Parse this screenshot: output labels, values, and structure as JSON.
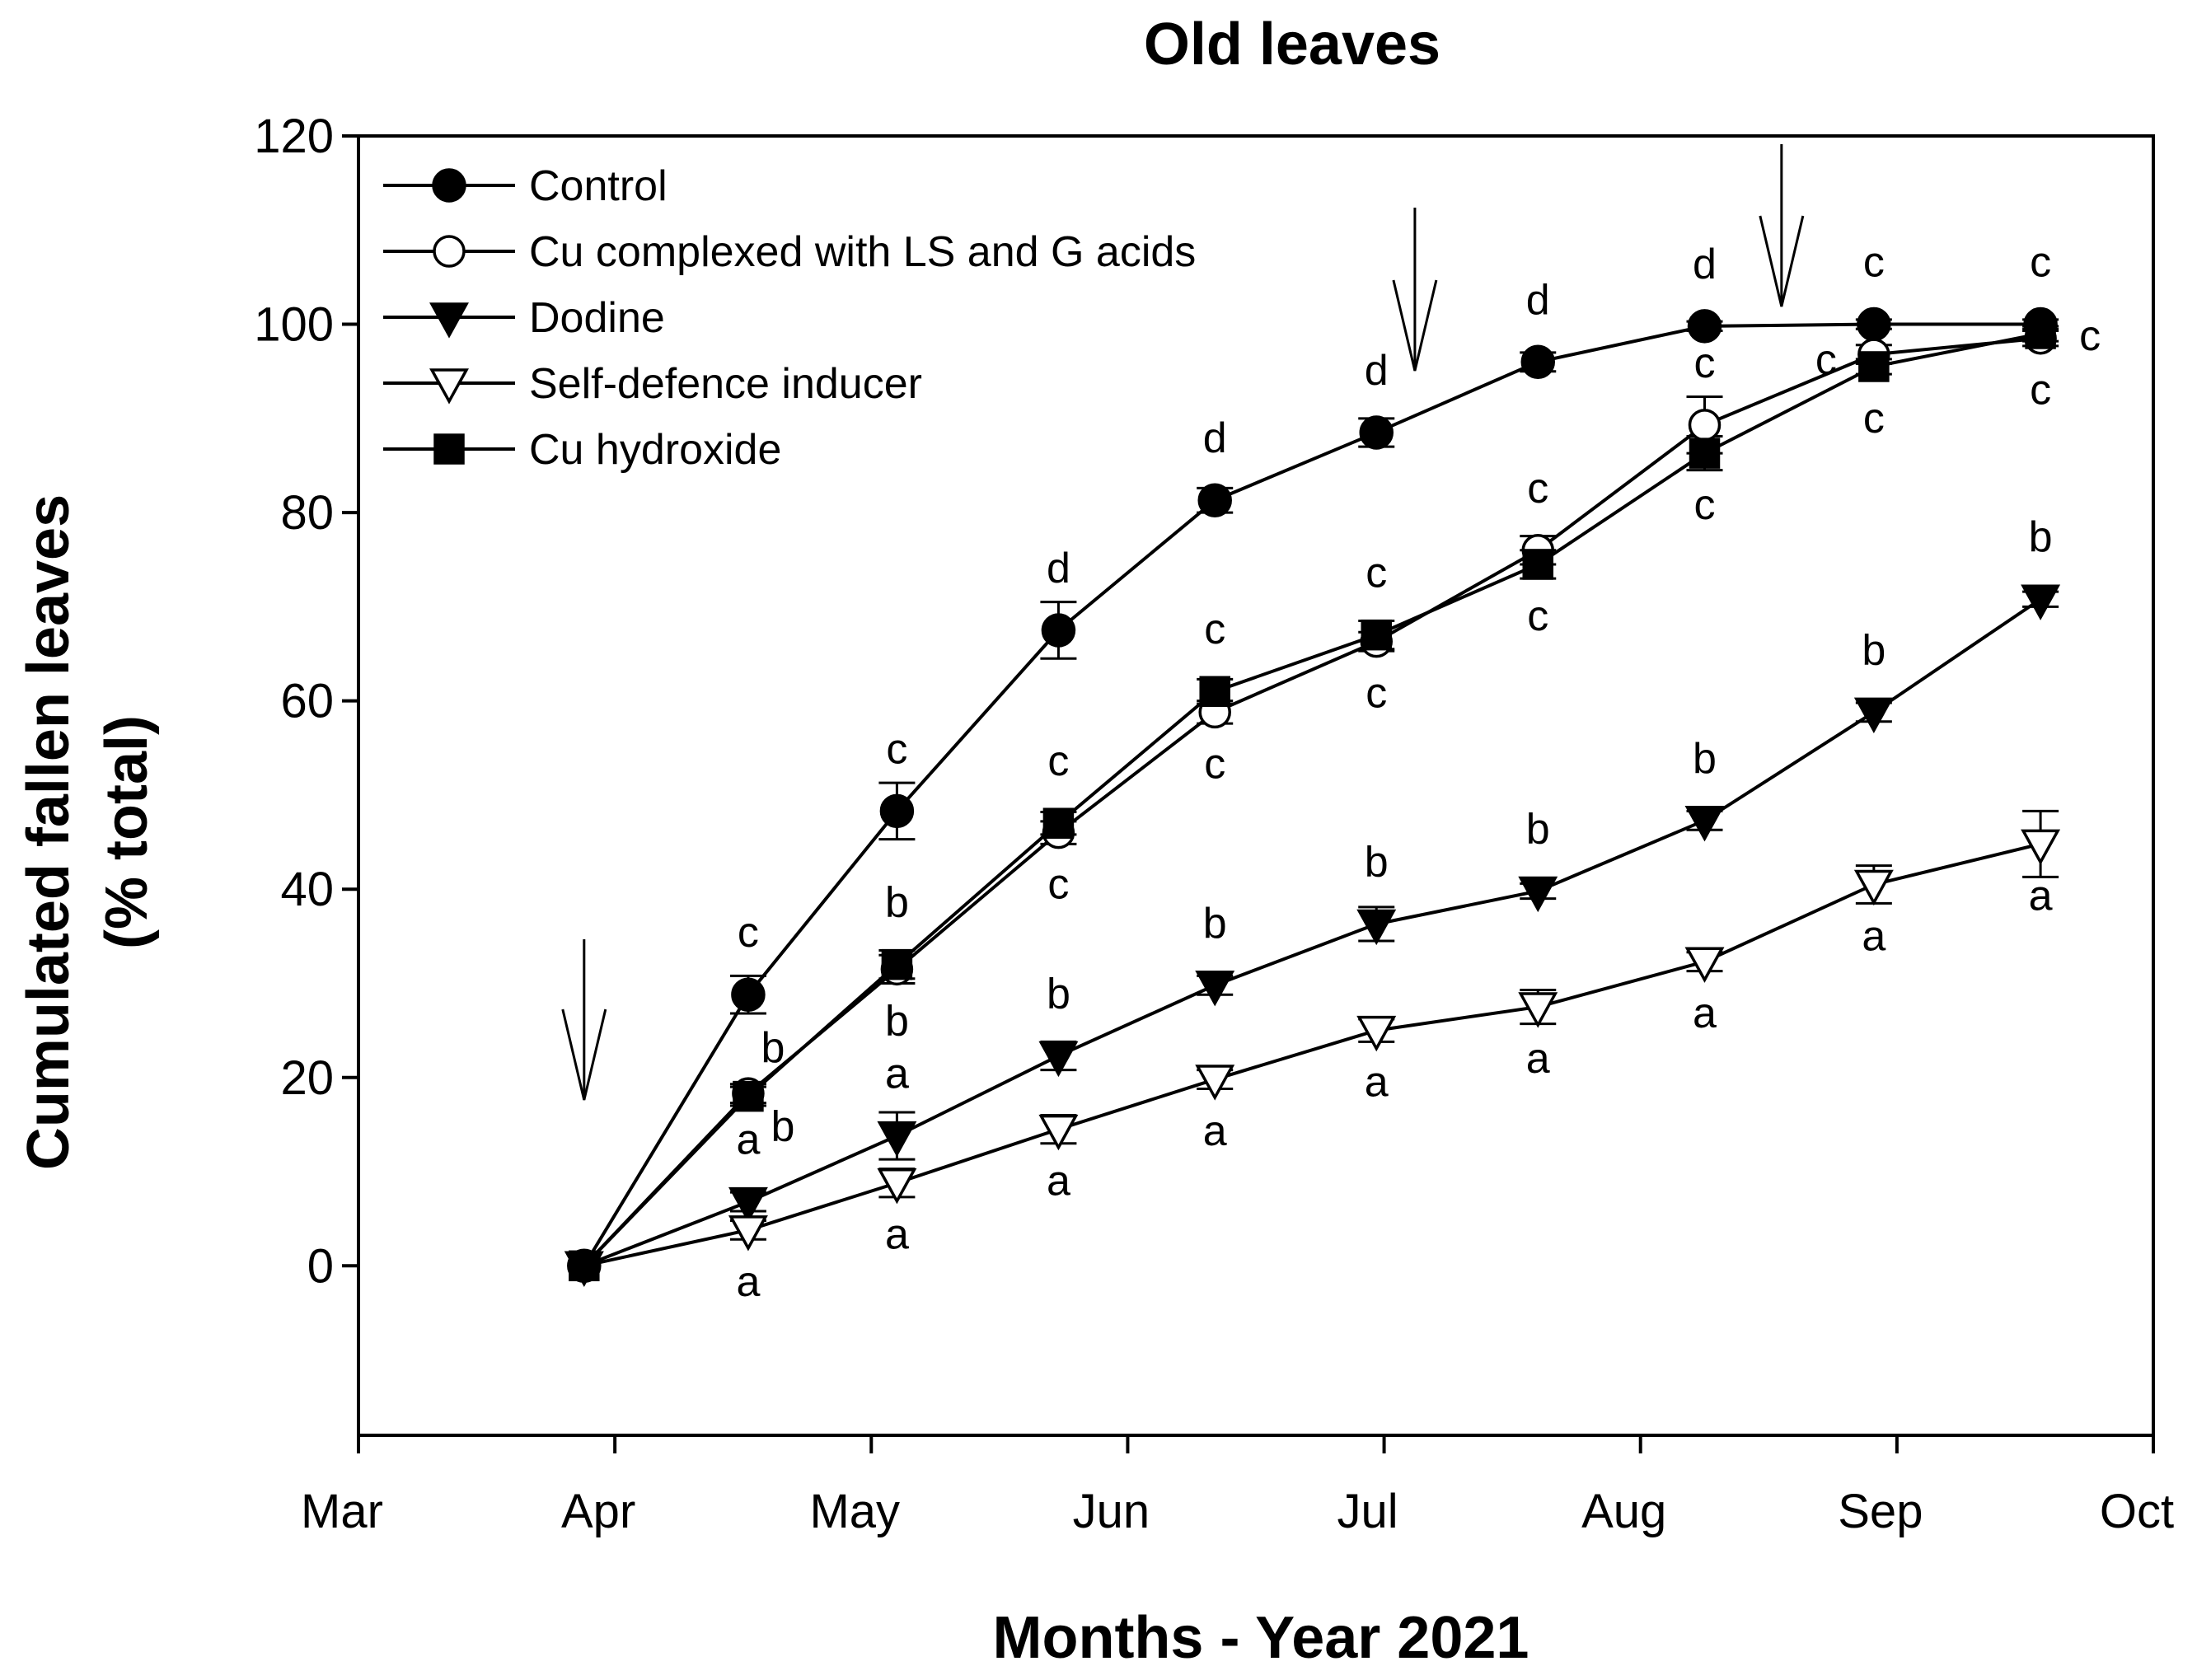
{
  "chart_data": {
    "type": "line",
    "title": "Old leaves",
    "xlabel": "Months - Year 2021",
    "ylabel_lines": [
      "Cumulated fallen leaves",
      "(% total)"
    ],
    "xlim": [
      0,
      7
    ],
    "ylim": [
      -18,
      120
    ],
    "x_tick_labels": [
      "Mar",
      "Apr",
      "May",
      "Jun",
      "Jul",
      "Aug",
      "Sep",
      "Oct"
    ],
    "y_ticks": [
      0,
      20,
      40,
      60,
      80,
      100,
      120
    ],
    "x": [
      0.88,
      1.52,
      2.1,
      2.73,
      3.34,
      3.97,
      4.6,
      5.25,
      5.91,
      6.56
    ],
    "series": [
      {
        "name": "Control",
        "marker": "circle-filled",
        "values": [
          0,
          28.8,
          48.3,
          67.5,
          81.3,
          88.5,
          96,
          99.8,
          100,
          100
        ],
        "errors": [
          0,
          2,
          3,
          3,
          1.3,
          1.5,
          1,
          0.5,
          0.5,
          0.5
        ],
        "letters": [
          "",
          "c",
          "c",
          "d",
          "d",
          "d",
          "d",
          "d",
          "c",
          "c"
        ],
        "letter_pos": [
          "",
          "above",
          "above",
          "above",
          "above",
          "above",
          "above",
          "above",
          "above",
          "above"
        ]
      },
      {
        "name": "Cu complexed with LS and G acids",
        "marker": "circle-open",
        "values": [
          0,
          18.3,
          31.5,
          46,
          58.8,
          66.3,
          76,
          89.3,
          96.8,
          98.5
        ],
        "errors": [
          0,
          1,
          1.5,
          1.2,
          1.2,
          1,
          1.5,
          3,
          1,
          0.8
        ],
        "letters": [
          "",
          "b",
          "b",
          "c",
          "c",
          "c",
          "c",
          "c",
          "c",
          "c"
        ],
        "letter_pos": [
          "",
          "upper-right",
          "below",
          "below",
          "below",
          "below",
          "above",
          "above",
          "left",
          "below"
        ]
      },
      {
        "name": "Dodine",
        "marker": "triangle-down-filled",
        "values": [
          0,
          6.8,
          13.8,
          22.3,
          29.8,
          36.3,
          39.8,
          47.3,
          58.8,
          70.8
        ],
        "errors": [
          0,
          1,
          2.5,
          1.5,
          1,
          1.8,
          0.8,
          1,
          1,
          0.8
        ],
        "letters": [
          "",
          "a",
          "a",
          "b",
          "b",
          "b",
          "b",
          "b",
          "b",
          "b"
        ],
        "letter_pos": [
          "",
          "above",
          "above",
          "above",
          "above",
          "above",
          "above",
          "above",
          "above",
          "above"
        ]
      },
      {
        "name": "Self-defence inducer",
        "marker": "triangle-down-open",
        "values": [
          0,
          3.8,
          8.8,
          14.5,
          19.8,
          25,
          27.5,
          32.3,
          40.5,
          44.8
        ],
        "errors": [
          0,
          1,
          1.5,
          1.5,
          1,
          1.2,
          1.8,
          1,
          2,
          3.5
        ],
        "letters": [
          "",
          "a",
          "a",
          "a",
          "a",
          "a",
          "a",
          "a",
          "a",
          "a"
        ],
        "letter_pos": [
          "",
          "below",
          "below",
          "below",
          "below",
          "below",
          "below",
          "below",
          "below",
          "below"
        ]
      },
      {
        "name": "Cu hydroxide",
        "marker": "square-filled",
        "values": [
          0,
          18,
          32,
          47,
          61,
          67,
          74.5,
          86.3,
          95.5,
          99
        ],
        "errors": [
          0,
          1,
          1.5,
          1.2,
          1.3,
          1.5,
          1.5,
          1.8,
          0.8,
          0.8
        ],
        "letters": [
          "",
          "b",
          "b",
          "c",
          "c",
          "c",
          "c",
          "c",
          "c",
          "c"
        ],
        "letter_pos": [
          "",
          "lower-right",
          "above",
          "above",
          "above",
          "above",
          "below",
          "below",
          "below",
          "right"
        ]
      }
    ],
    "arrows_x": [
      0.88,
      4.12,
      5.55
    ]
  }
}
